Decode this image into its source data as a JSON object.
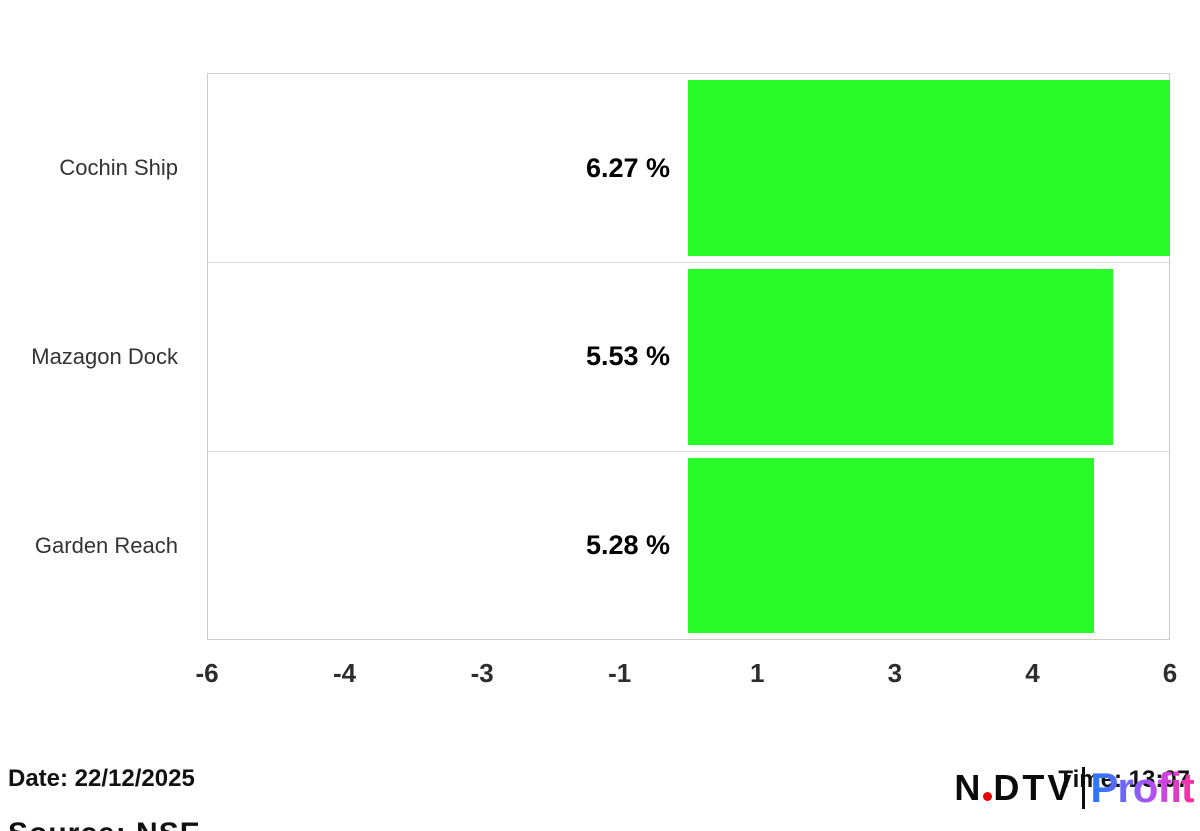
{
  "meta": {
    "date_label": "Date: 22/12/2025",
    "time_label": "Time: 13:07",
    "source_label": "Source: NSE"
  },
  "logo": {
    "brand_n": "N",
    "brand_rest": "DTV",
    "product": "Profit",
    "dot_color": "#e60000",
    "gradient_start": "#1f7bff",
    "gradient_end": "#ff2d9e"
  },
  "chart_data": {
    "type": "bar",
    "orientation": "horizontal",
    "title": "",
    "xlabel": "",
    "ylabel": "",
    "categories": [
      "Cochin Ship",
      "Mazagon Dock",
      "Garden Reach"
    ],
    "values": [
      6.27,
      5.53,
      5.28
    ],
    "value_labels": [
      "6.27 %",
      "5.53 %",
      "5.28 %"
    ],
    "value_suffix": "%",
    "x_tick_labels": [
      "-6",
      "-4",
      "-3",
      "-1",
      "1",
      "3",
      "4",
      "6"
    ],
    "xlim": [
      -6,
      6
    ],
    "bar_color": "#28fa28",
    "grid": false,
    "legend": false
  }
}
